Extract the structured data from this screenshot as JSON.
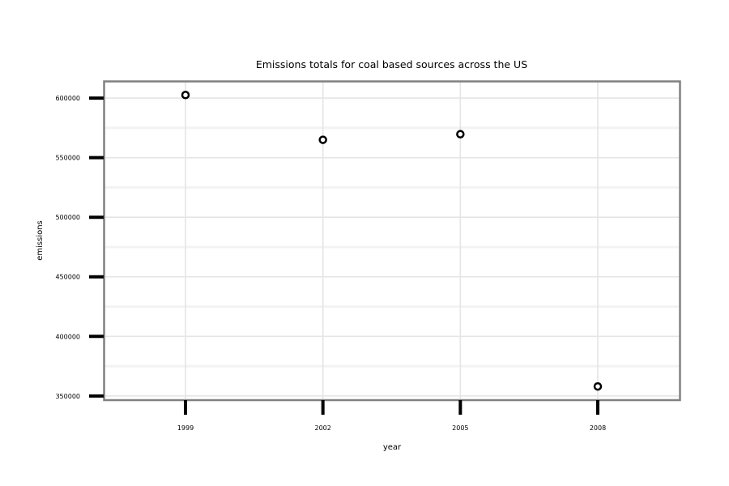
{
  "chart_data": {
    "type": "scatter",
    "title": "Emissions totals for coal based sources across the US",
    "xlabel": "year",
    "ylabel": "emissions",
    "x": [
      1999,
      2002,
      2005,
      2008
    ],
    "y": [
      602600,
      565000,
      569700,
      358000
    ],
    "x_ticks": [
      "1999",
      "2002",
      "2005",
      "2008"
    ],
    "y_ticks": [
      350000,
      400000,
      450000,
      500000,
      550000,
      600000
    ],
    "y_tick_labels": [
      "350000",
      "400000",
      "450000",
      "500000",
      "550000",
      "600000"
    ],
    "ylim": [
      346500,
      614000
    ],
    "grid": true,
    "legend": "none"
  }
}
